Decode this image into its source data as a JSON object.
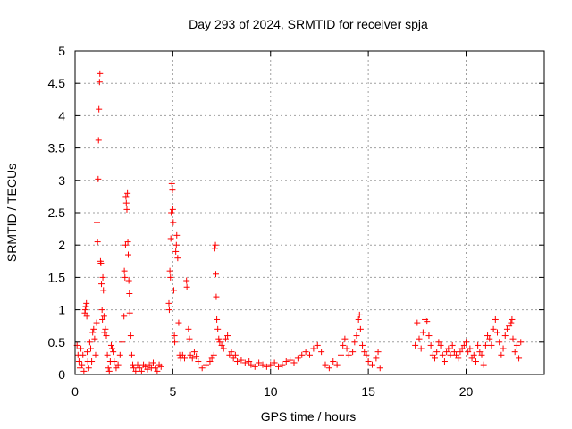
{
  "chart_data": {
    "type": "scatter",
    "title": "Day 293 of 2024, SRMTID for receiver spja",
    "xlabel": "GPS time / hours",
    "ylabel": "SRMTID / TECUs",
    "xlim": [
      0,
      24
    ],
    "ylim": [
      0,
      5
    ],
    "xticks": [
      0,
      5,
      10,
      15,
      20
    ],
    "yticks": [
      0,
      0.5,
      1,
      1.5,
      2,
      2.5,
      3,
      3.5,
      4,
      4.5,
      5
    ],
    "xtick_labels": [
      "0",
      "5",
      "10",
      "15",
      "20"
    ],
    "ytick_labels": [
      "0",
      "0.5",
      "1",
      "1.5",
      "2",
      "2.5",
      "3",
      "3.5",
      "4",
      "4.5",
      "5"
    ],
    "grid": true,
    "marker": "+",
    "color": "#ff0000",
    "series": [
      {
        "name": "SRMTID",
        "points": [
          [
            0.1,
            0.45
          ],
          [
            0.15,
            0.3
          ],
          [
            0.2,
            0.2
          ],
          [
            0.25,
            0.1
          ],
          [
            0.3,
            0.4
          ],
          [
            0.35,
            0.15
          ],
          [
            0.4,
            0.3
          ],
          [
            0.45,
            0.05
          ],
          [
            0.5,
            0.95
          ],
          [
            0.52,
            1.0
          ],
          [
            0.55,
            1.05
          ],
          [
            0.58,
            1.1
          ],
          [
            0.6,
            0.9
          ],
          [
            0.62,
            0.35
          ],
          [
            0.65,
            0.2
          ],
          [
            0.7,
            0.1
          ],
          [
            0.75,
            0.5
          ],
          [
            0.8,
            0.4
          ],
          [
            0.85,
            0.2
          ],
          [
            0.9,
            0.65
          ],
          [
            0.95,
            0.7
          ],
          [
            1.0,
            0.55
          ],
          [
            1.05,
            0.3
          ],
          [
            1.1,
            0.8
          ],
          [
            1.12,
            2.35
          ],
          [
            1.15,
            2.05
          ],
          [
            1.18,
            3.02
          ],
          [
            1.2,
            3.62
          ],
          [
            1.22,
            4.1
          ],
          [
            1.25,
            4.52
          ],
          [
            1.27,
            4.65
          ],
          [
            1.3,
            1.75
          ],
          [
            1.32,
            1.72
          ],
          [
            1.35,
            1.4
          ],
          [
            1.38,
            1.0
          ],
          [
            1.4,
            0.85
          ],
          [
            1.42,
            1.5
          ],
          [
            1.45,
            1.3
          ],
          [
            1.48,
            0.9
          ],
          [
            1.5,
            0.65
          ],
          [
            1.55,
            0.7
          ],
          [
            1.6,
            0.6
          ],
          [
            1.65,
            0.3
          ],
          [
            1.7,
            0.1
          ],
          [
            1.75,
            0.05
          ],
          [
            1.8,
            0.2
          ],
          [
            1.85,
            0.45
          ],
          [
            1.9,
            0.4
          ],
          [
            1.95,
            0.35
          ],
          [
            2.0,
            0.2
          ],
          [
            2.1,
            0.1
          ],
          [
            2.2,
            0.15
          ],
          [
            2.3,
            0.3
          ],
          [
            2.4,
            0.5
          ],
          [
            2.5,
            0.9
          ],
          [
            2.52,
            1.6
          ],
          [
            2.55,
            1.5
          ],
          [
            2.58,
            2.0
          ],
          [
            2.6,
            2.75
          ],
          [
            2.62,
            2.65
          ],
          [
            2.65,
            2.55
          ],
          [
            2.68,
            2.8
          ],
          [
            2.7,
            2.05
          ],
          [
            2.72,
            1.85
          ],
          [
            2.75,
            1.45
          ],
          [
            2.78,
            1.25
          ],
          [
            2.8,
            0.95
          ],
          [
            2.85,
            0.6
          ],
          [
            2.9,
            0.3
          ],
          [
            2.95,
            0.15
          ],
          [
            3.0,
            0.1
          ],
          [
            3.1,
            0.05
          ],
          [
            3.2,
            0.15
          ],
          [
            3.3,
            0.1
          ],
          [
            3.4,
            0.05
          ],
          [
            3.5,
            0.15
          ],
          [
            3.6,
            0.12
          ],
          [
            3.7,
            0.08
          ],
          [
            3.8,
            0.15
          ],
          [
            3.9,
            0.1
          ],
          [
            4.0,
            0.18
          ],
          [
            4.1,
            0.1
          ],
          [
            4.2,
            0.05
          ],
          [
            4.3,
            0.15
          ],
          [
            4.4,
            0.12
          ],
          [
            4.8,
            1.1
          ],
          [
            4.82,
            1.0
          ],
          [
            4.85,
            1.6
          ],
          [
            4.88,
            1.5
          ],
          [
            4.9,
            2.1
          ],
          [
            4.92,
            2.5
          ],
          [
            4.95,
            2.95
          ],
          [
            4.98,
            2.85
          ],
          [
            5.0,
            2.55
          ],
          [
            5.02,
            2.35
          ],
          [
            5.05,
            1.3
          ],
          [
            5.08,
            0.6
          ],
          [
            5.1,
            0.5
          ],
          [
            5.15,
            1.9
          ],
          [
            5.18,
            2.0
          ],
          [
            5.2,
            2.15
          ],
          [
            5.25,
            1.8
          ],
          [
            5.3,
            0.8
          ],
          [
            5.35,
            0.3
          ],
          [
            5.4,
            0.25
          ],
          [
            5.5,
            0.3
          ],
          [
            5.6,
            0.25
          ],
          [
            5.7,
            1.45
          ],
          [
            5.72,
            1.35
          ],
          [
            5.8,
            0.7
          ],
          [
            5.85,
            0.55
          ],
          [
            5.9,
            0.3
          ],
          [
            6.0,
            0.25
          ],
          [
            6.1,
            0.35
          ],
          [
            6.2,
            0.28
          ],
          [
            6.3,
            0.2
          ],
          [
            6.5,
            0.1
          ],
          [
            6.7,
            0.15
          ],
          [
            6.9,
            0.2
          ],
          [
            7.0,
            0.25
          ],
          [
            7.1,
            0.3
          ],
          [
            7.15,
            1.95
          ],
          [
            7.18,
            2.0
          ],
          [
            7.2,
            1.55
          ],
          [
            7.22,
            1.2
          ],
          [
            7.25,
            0.85
          ],
          [
            7.3,
            0.7
          ],
          [
            7.35,
            0.55
          ],
          [
            7.4,
            0.5
          ],
          [
            7.5,
            0.45
          ],
          [
            7.6,
            0.4
          ],
          [
            7.7,
            0.55
          ],
          [
            7.8,
            0.6
          ],
          [
            7.9,
            0.3
          ],
          [
            8.0,
            0.35
          ],
          [
            8.1,
            0.25
          ],
          [
            8.2,
            0.3
          ],
          [
            8.3,
            0.2
          ],
          [
            8.5,
            0.22
          ],
          [
            8.7,
            0.18
          ],
          [
            8.9,
            0.2
          ],
          [
            9.0,
            0.15
          ],
          [
            9.2,
            0.12
          ],
          [
            9.4,
            0.18
          ],
          [
            9.6,
            0.15
          ],
          [
            9.8,
            0.12
          ],
          [
            10.0,
            0.15
          ],
          [
            10.2,
            0.18
          ],
          [
            10.4,
            0.12
          ],
          [
            10.6,
            0.15
          ],
          [
            10.8,
            0.2
          ],
          [
            11.0,
            0.22
          ],
          [
            11.2,
            0.18
          ],
          [
            11.4,
            0.25
          ],
          [
            11.6,
            0.3
          ],
          [
            11.8,
            0.35
          ],
          [
            12.0,
            0.3
          ],
          [
            12.2,
            0.4
          ],
          [
            12.4,
            0.45
          ],
          [
            12.6,
            0.35
          ],
          [
            12.8,
            0.15
          ],
          [
            13.0,
            0.1
          ],
          [
            13.2,
            0.2
          ],
          [
            13.4,
            0.15
          ],
          [
            13.6,
            0.3
          ],
          [
            13.7,
            0.45
          ],
          [
            13.8,
            0.55
          ],
          [
            13.9,
            0.4
          ],
          [
            14.0,
            0.3
          ],
          [
            14.2,
            0.35
          ],
          [
            14.3,
            0.5
          ],
          [
            14.4,
            0.6
          ],
          [
            14.5,
            0.85
          ],
          [
            14.55,
            0.92
          ],
          [
            14.6,
            0.7
          ],
          [
            14.7,
            0.45
          ],
          [
            14.8,
            0.35
          ],
          [
            14.9,
            0.3
          ],
          [
            15.0,
            0.2
          ],
          [
            15.2,
            0.15
          ],
          [
            15.4,
            0.25
          ],
          [
            15.5,
            0.35
          ],
          [
            15.6,
            0.1
          ],
          [
            17.4,
            0.45
          ],
          [
            17.5,
            0.8
          ],
          [
            17.6,
            0.55
          ],
          [
            17.7,
            0.4
          ],
          [
            17.8,
            0.65
          ],
          [
            17.9,
            0.85
          ],
          [
            18.0,
            0.82
          ],
          [
            18.1,
            0.6
          ],
          [
            18.2,
            0.45
          ],
          [
            18.3,
            0.3
          ],
          [
            18.4,
            0.25
          ],
          [
            18.5,
            0.35
          ],
          [
            18.6,
            0.5
          ],
          [
            18.7,
            0.45
          ],
          [
            18.8,
            0.3
          ],
          [
            18.9,
            0.2
          ],
          [
            19.0,
            0.35
          ],
          [
            19.1,
            0.4
          ],
          [
            19.2,
            0.3
          ],
          [
            19.3,
            0.45
          ],
          [
            19.4,
            0.35
          ],
          [
            19.5,
            0.3
          ],
          [
            19.6,
            0.25
          ],
          [
            19.7,
            0.35
          ],
          [
            19.8,
            0.4
          ],
          [
            19.9,
            0.45
          ],
          [
            20.0,
            0.5
          ],
          [
            20.1,
            0.35
          ],
          [
            20.2,
            0.4
          ],
          [
            20.3,
            0.25
          ],
          [
            20.4,
            0.3
          ],
          [
            20.5,
            0.2
          ],
          [
            20.6,
            0.45
          ],
          [
            20.7,
            0.35
          ],
          [
            20.8,
            0.3
          ],
          [
            20.9,
            0.15
          ],
          [
            21.0,
            0.45
          ],
          [
            21.1,
            0.6
          ],
          [
            21.2,
            0.55
          ],
          [
            21.3,
            0.45
          ],
          [
            21.4,
            0.7
          ],
          [
            21.5,
            0.85
          ],
          [
            21.6,
            0.65
          ],
          [
            21.7,
            0.5
          ],
          [
            21.8,
            0.3
          ],
          [
            21.9,
            0.4
          ],
          [
            22.0,
            0.6
          ],
          [
            22.1,
            0.7
          ],
          [
            22.2,
            0.75
          ],
          [
            22.3,
            0.8
          ],
          [
            22.35,
            0.85
          ],
          [
            22.4,
            0.55
          ],
          [
            22.5,
            0.35
          ],
          [
            22.6,
            0.45
          ],
          [
            22.7,
            0.25
          ],
          [
            22.8,
            0.5
          ]
        ]
      }
    ]
  }
}
